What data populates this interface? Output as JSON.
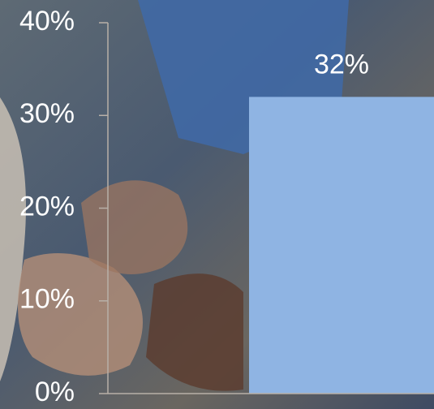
{
  "chart_data": {
    "type": "bar",
    "categories": [
      null
    ],
    "values": [
      32
    ],
    "value_labels": [
      "32%"
    ],
    "color": "#8fb4e3",
    "ylim": [
      0,
      40
    ],
    "yticks": [
      {
        "value": 0,
        "label": "0%"
      },
      {
        "value": 10,
        "label": "10%"
      },
      {
        "value": 20,
        "label": "20%"
      },
      {
        "value": 30,
        "label": "30%"
      },
      {
        "value": 40,
        "label": "40%"
      }
    ]
  }
}
